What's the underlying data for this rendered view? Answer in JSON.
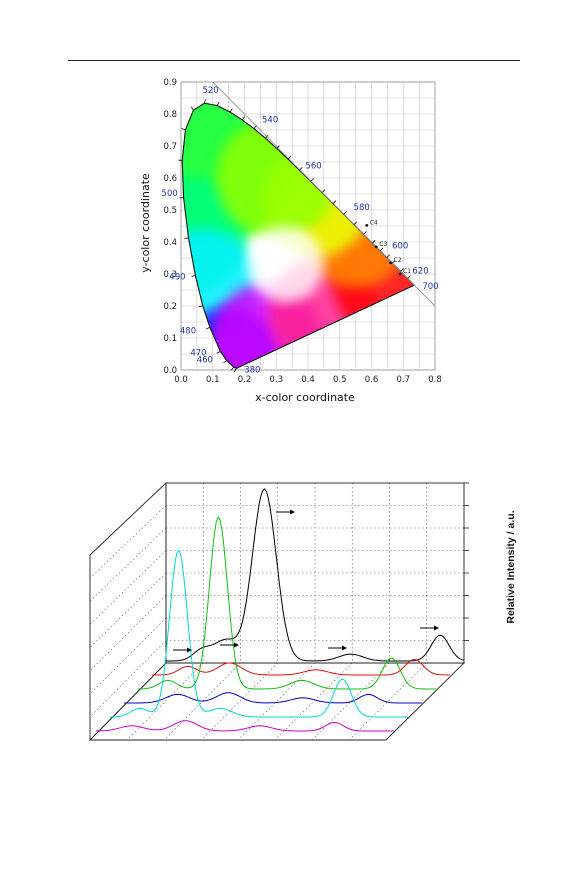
{
  "chart_data": [
    {
      "type": "scatter",
      "title": "",
      "xlabel": "x-color coordinate",
      "ylabel": "y-color coordinate",
      "xlim": [
        0.0,
        0.8
      ],
      "ylim": [
        0.0,
        0.9
      ],
      "xticks": [
        "0.0",
        "0.1",
        "0.2",
        "0.3",
        "0.4",
        "0.5",
        "0.6",
        "0.7",
        "0.8"
      ],
      "yticks": [
        "0.0",
        "0.1",
        "0.2",
        "0.3",
        "0.4",
        "0.5",
        "0.6",
        "0.7",
        "0.8",
        "0.9"
      ],
      "grid": true,
      "locus": [
        {
          "wl": "380",
          "x": 0.174,
          "y": 0.005
        },
        {
          "wl": "460",
          "x": 0.144,
          "y": 0.03
        },
        {
          "wl": "470",
          "x": 0.124,
          "y": 0.058
        },
        {
          "wl": "480",
          "x": 0.091,
          "y": 0.133
        },
        {
          "wl": "490",
          "x": 0.045,
          "y": 0.295
        },
        {
          "wl": "500",
          "x": 0.008,
          "y": 0.538
        },
        {
          "wl": "520",
          "x": 0.074,
          "y": 0.834
        },
        {
          "wl": "540",
          "x": 0.23,
          "y": 0.754
        },
        {
          "wl": "560",
          "x": 0.373,
          "y": 0.624
        },
        {
          "wl": "580",
          "x": 0.512,
          "y": 0.487
        },
        {
          "wl": "600",
          "x": 0.627,
          "y": 0.373
        },
        {
          "wl": "620",
          "x": 0.691,
          "y": 0.308
        },
        {
          "wl": "700",
          "x": 0.735,
          "y": 0.265
        }
      ],
      "points": [
        {
          "label": "C4",
          "x": 0.585,
          "y": 0.452
        },
        {
          "label": "C3",
          "x": 0.615,
          "y": 0.385
        },
        {
          "label": "C2",
          "x": 0.66,
          "y": 0.335
        },
        {
          "label": "C1",
          "x": 0.69,
          "y": 0.3
        }
      ]
    },
    {
      "type": "line",
      "title": "",
      "ylabel": "Relative Intensity / a.u.",
      "grid": true,
      "series": [
        {
          "color": "#000000"
        },
        {
          "color": "#e01010"
        },
        {
          "color": "#10c010"
        },
        {
          "color": "#0000cc"
        },
        {
          "color": "#00d8d8"
        },
        {
          "color": "#cc00cc"
        }
      ]
    }
  ]
}
